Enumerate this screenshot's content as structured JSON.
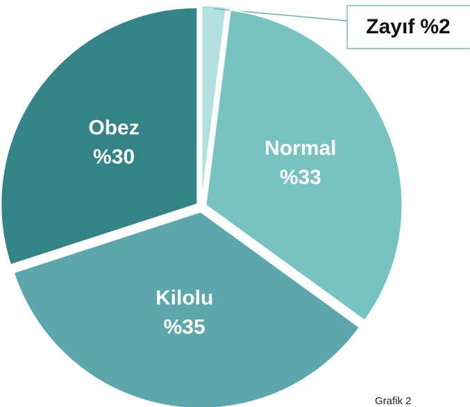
{
  "chart_data": {
    "type": "pie",
    "categories": [
      "Zayıf",
      "Normal",
      "Kilolu",
      "Obez"
    ],
    "values": [
      2,
      33,
      35,
      30
    ],
    "value_labels": [
      "%2",
      "%33",
      "%35",
      "%30"
    ],
    "colors": [
      "#b3dfdf",
      "#77c3c1",
      "#5ba7ab",
      "#338387"
    ],
    "caption": "Grafik 2"
  }
}
